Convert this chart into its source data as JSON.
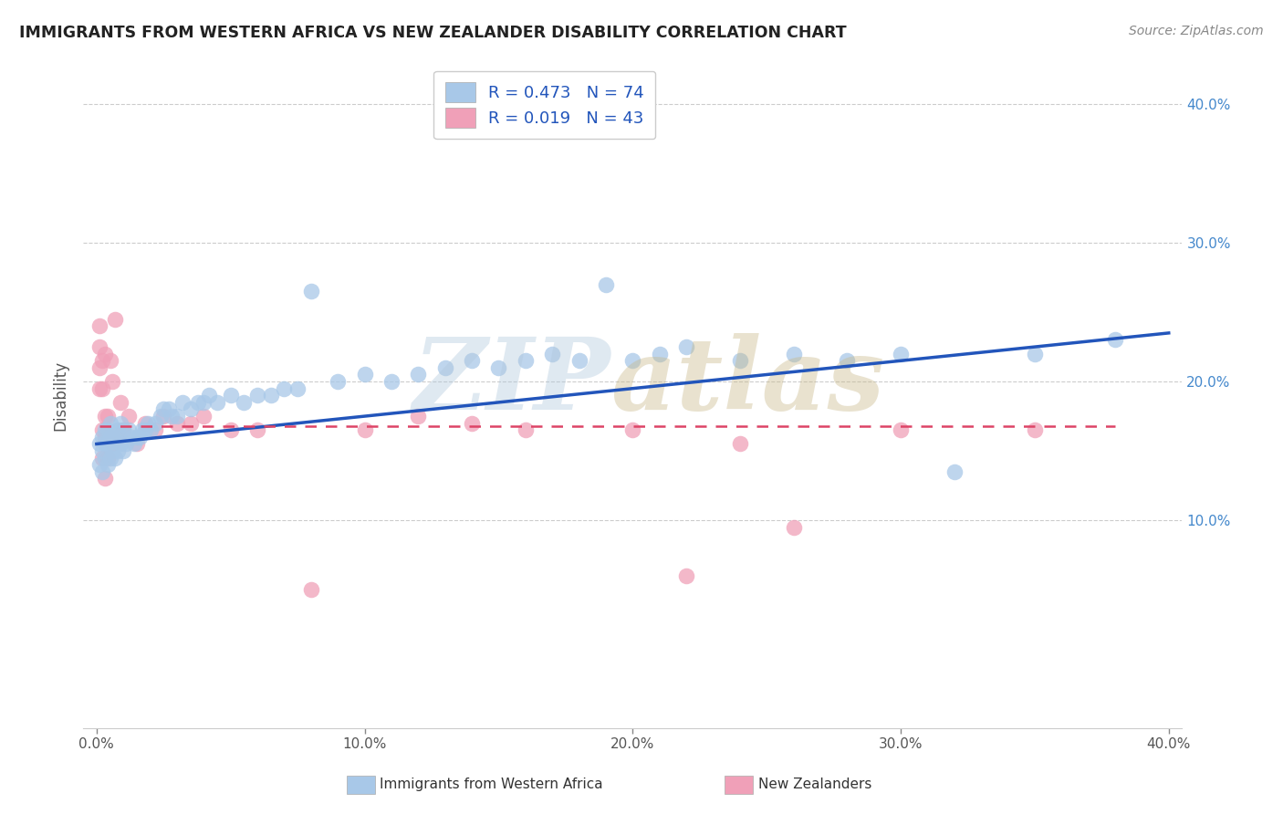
{
  "title": "IMMIGRANTS FROM WESTERN AFRICA VS NEW ZEALANDER DISABILITY CORRELATION CHART",
  "source_text": "Source: ZipAtlas.com",
  "ylabel": "Disability",
  "xlim": [
    -0.005,
    0.405
  ],
  "ylim": [
    -0.05,
    0.43
  ],
  "xticks": [
    0.0,
    0.1,
    0.2,
    0.3,
    0.4
  ],
  "yticks": [
    0.1,
    0.2,
    0.3,
    0.4
  ],
  "xticklabels": [
    "0.0%",
    "10.0%",
    "20.0%",
    "30.0%",
    "40.0%"
  ],
  "yticklabels": [
    "10.0%",
    "20.0%",
    "30.0%",
    "40.0%"
  ],
  "legend_r1": "R = 0.473",
  "legend_n1": "N = 74",
  "legend_r2": "R = 0.019",
  "legend_n2": "N = 43",
  "blue_color": "#A8C8E8",
  "pink_color": "#F0A0B8",
  "blue_line_color": "#2255BB",
  "pink_line_color": "#DD4466",
  "title_color": "#222222",
  "grid_color": "#CCCCCC",
  "blue_scatter_x": [
    0.001,
    0.001,
    0.002,
    0.002,
    0.002,
    0.003,
    0.003,
    0.003,
    0.004,
    0.004,
    0.004,
    0.005,
    0.005,
    0.005,
    0.006,
    0.006,
    0.007,
    0.007,
    0.008,
    0.008,
    0.009,
    0.009,
    0.01,
    0.01,
    0.011,
    0.012,
    0.013,
    0.014,
    0.015,
    0.016,
    0.017,
    0.018,
    0.019,
    0.02,
    0.022,
    0.024,
    0.025,
    0.027,
    0.028,
    0.03,
    0.032,
    0.035,
    0.038,
    0.04,
    0.042,
    0.045,
    0.05,
    0.055,
    0.06,
    0.065,
    0.07,
    0.075,
    0.08,
    0.09,
    0.1,
    0.11,
    0.12,
    0.13,
    0.14,
    0.15,
    0.16,
    0.17,
    0.18,
    0.19,
    0.2,
    0.21,
    0.22,
    0.24,
    0.26,
    0.28,
    0.3,
    0.32,
    0.35,
    0.38
  ],
  "blue_scatter_y": [
    0.14,
    0.155,
    0.135,
    0.15,
    0.16,
    0.145,
    0.155,
    0.165,
    0.14,
    0.155,
    0.165,
    0.145,
    0.16,
    0.17,
    0.15,
    0.16,
    0.145,
    0.16,
    0.15,
    0.165,
    0.155,
    0.17,
    0.15,
    0.165,
    0.155,
    0.165,
    0.16,
    0.155,
    0.16,
    0.16,
    0.165,
    0.165,
    0.17,
    0.165,
    0.17,
    0.175,
    0.18,
    0.18,
    0.175,
    0.175,
    0.185,
    0.18,
    0.185,
    0.185,
    0.19,
    0.185,
    0.19,
    0.185,
    0.19,
    0.19,
    0.195,
    0.195,
    0.265,
    0.2,
    0.205,
    0.2,
    0.205,
    0.21,
    0.215,
    0.21,
    0.215,
    0.22,
    0.215,
    0.27,
    0.215,
    0.22,
    0.225,
    0.215,
    0.22,
    0.215,
    0.22,
    0.135,
    0.22,
    0.23
  ],
  "pink_scatter_x": [
    0.001,
    0.001,
    0.001,
    0.001,
    0.002,
    0.002,
    0.002,
    0.002,
    0.003,
    0.003,
    0.003,
    0.003,
    0.004,
    0.004,
    0.005,
    0.005,
    0.006,
    0.006,
    0.007,
    0.008,
    0.009,
    0.01,
    0.012,
    0.015,
    0.018,
    0.022,
    0.025,
    0.03,
    0.035,
    0.04,
    0.05,
    0.06,
    0.08,
    0.1,
    0.12,
    0.14,
    0.16,
    0.2,
    0.22,
    0.24,
    0.26,
    0.3,
    0.35
  ],
  "pink_scatter_y": [
    0.195,
    0.21,
    0.225,
    0.24,
    0.145,
    0.165,
    0.195,
    0.215,
    0.13,
    0.16,
    0.175,
    0.22,
    0.145,
    0.175,
    0.16,
    0.215,
    0.155,
    0.2,
    0.245,
    0.16,
    0.185,
    0.165,
    0.175,
    0.155,
    0.17,
    0.165,
    0.175,
    0.17,
    0.17,
    0.175,
    0.165,
    0.165,
    0.05,
    0.165,
    0.175,
    0.17,
    0.165,
    0.165,
    0.06,
    0.155,
    0.095,
    0.165,
    0.165
  ],
  "blue_line_x_start": 0.0,
  "blue_line_x_end": 0.4,
  "blue_line_y_start": 0.155,
  "blue_line_y_end": 0.235,
  "pink_line_x_start": 0.001,
  "pink_line_x_end": 0.38,
  "pink_line_y_start": 0.168,
  "pink_line_y_end": 0.168
}
